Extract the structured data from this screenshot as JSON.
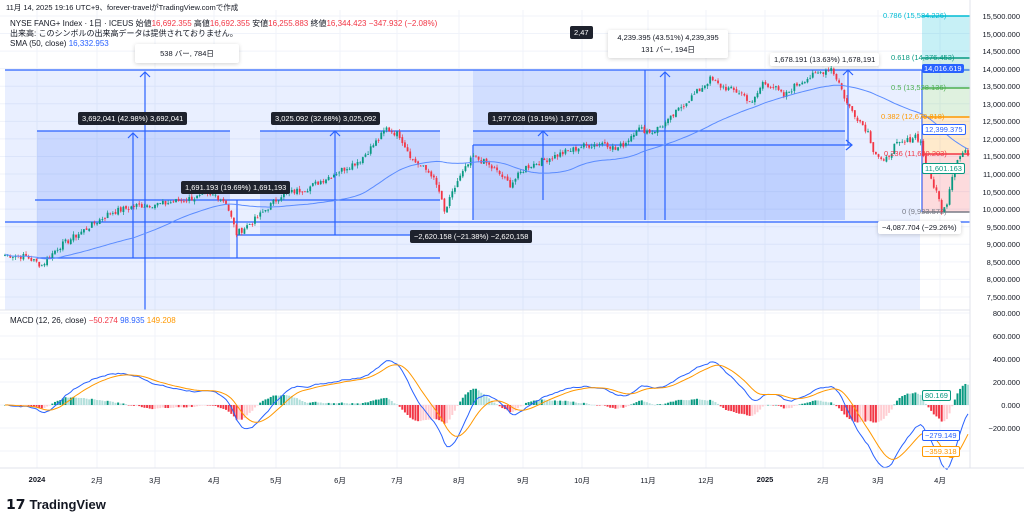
{
  "caption": "11月 14, 2025 19:16 UTC+9、forever-travelがTradingView.comで作成",
  "legend": {
    "symbol": "NYSE FANG+ Index · 1日 · ICEUS",
    "open_label": "始値",
    "open": "16,692.355",
    "high_label": "高値",
    "high": "16,692.355",
    "low_label": "安値",
    "low": "16,255.883",
    "close_label": "終値",
    "close": "16,344.423",
    "change": "−347.932 (−2.08%)",
    "volume_note": "出来高: このシンボルの出来高データは提供されておりません。",
    "sma_label": "SMA (50, close)",
    "sma_value": "16,332.953",
    "macd_label": "MACD (12, 26, close)",
    "macd_hist": "−50.274",
    "macd_line": "98.935",
    "macd_signal": "149.208"
  },
  "measurements": {
    "m1": "3,692,041 (42.98%) 3,692,041",
    "m2": "1,691.193 (19.69%) 1,691,193",
    "m3": "3,025.092 (32.68%) 3,025,092",
    "m4": "1,977.028 (19.19%) 1,977,028",
    "m5": "−2,620.158 (−21.38%) −2,620,158",
    "m6_line1": "4,239.395 (43.51%) 4,239,395",
    "m6_line2": "131 バー, 194日",
    "m7": "1,678.191 (13.63%) 1,678,191",
    "m8": "538 バー, 784日",
    "m9": "−4,087.704 (−29.26%)",
    "m10": "2,47"
  },
  "fib": [
    {
      "label": "0.786 (15,584.226)",
      "color": "#00bcd4"
    },
    {
      "label": "0.618 (14,376.453)",
      "color": "#089981"
    },
    {
      "label": "0.5 (13,528.136)",
      "color": "#4caf50"
    },
    {
      "label": "0.382 (12,679.818)",
      "color": "#ff9800"
    },
    {
      "label": "0.236 (11,630.203)",
      "color": "#f23645"
    },
    {
      "label": "0 (9,933.572)",
      "color": "#787b86"
    }
  ],
  "price_axis": [
    "15,500.000",
    "15,000.000",
    "14,500.000",
    "14,000.000",
    "13,500.000",
    "13,000.000",
    "12,500.000",
    "12,000.000",
    "11,500.000",
    "11,000.000",
    "10,500.000",
    "10,000.000",
    "9,500.000",
    "9,000.000",
    "8,500.000",
    "8,000.000",
    "7,500.000"
  ],
  "price_tags": {
    "last_high": "14,016.619",
    "sma": "12,399.375",
    "close": "11,601.163"
  },
  "macd_axis": [
    "800.000",
    "600.000",
    "400.000",
    "200.000",
    "0.000",
    "−200.000"
  ],
  "macd_tags": {
    "hist": "80.169",
    "macd": "−279.149",
    "signal": "−359.318"
  },
  "time_axis": [
    "2024",
    "2月",
    "3月",
    "4月",
    "5月",
    "6月",
    "7月",
    "8月",
    "9月",
    "10月",
    "11月",
    "12月",
    "2025",
    "2月",
    "3月",
    "4月"
  ],
  "brand": "TradingView",
  "colors": {
    "up": "#089981",
    "down": "#f23645",
    "sma": "#5b8cff",
    "macd": "#2962ff",
    "signal": "#ff9800"
  },
  "chart_data": {
    "type": "candlestick",
    "title": "NYSE FANG+ Index · 1日",
    "ylim": [
      7300,
      15700
    ],
    "keypoints": [
      [
        0,
        8700
      ],
      [
        8,
        8650
      ],
      [
        14,
        8400
      ],
      [
        20,
        8900
      ],
      [
        30,
        9400
      ],
      [
        40,
        9900
      ],
      [
        50,
        10100
      ],
      [
        60,
        10150
      ],
      [
        70,
        10300
      ],
      [
        80,
        10400
      ],
      [
        84,
        10200
      ],
      [
        88,
        9300
      ],
      [
        95,
        9700
      ],
      [
        105,
        10400
      ],
      [
        115,
        10600
      ],
      [
        125,
        11000
      ],
      [
        135,
        11400
      ],
      [
        142,
        12000
      ],
      [
        145,
        12300
      ],
      [
        150,
        12100
      ],
      [
        155,
        11400
      ],
      [
        162,
        11000
      ],
      [
        165,
        10500
      ],
      [
        167,
        9900
      ],
      [
        172,
        10800
      ],
      [
        178,
        11500
      ],
      [
        183,
        11300
      ],
      [
        188,
        11000
      ],
      [
        192,
        10700
      ],
      [
        198,
        11200
      ],
      [
        205,
        11400
      ],
      [
        212,
        11600
      ],
      [
        220,
        11800
      ],
      [
        228,
        11900
      ],
      [
        232,
        11700
      ],
      [
        236,
        11900
      ],
      [
        240,
        12300
      ],
      [
        246,
        12200
      ],
      [
        252,
        12500
      ],
      [
        258,
        13000
      ],
      [
        264,
        13400
      ],
      [
        268,
        13700
      ],
      [
        272,
        13500
      ],
      [
        276,
        13400
      ],
      [
        280,
        13300
      ],
      [
        284,
        13000
      ],
      [
        288,
        13600
      ],
      [
        292,
        13500
      ],
      [
        296,
        13200
      ],
      [
        300,
        13500
      ],
      [
        304,
        13700
      ],
      [
        310,
        13900
      ],
      [
        314,
        14016
      ],
      [
        317,
        13600
      ],
      [
        320,
        13000
      ],
      [
        324,
        12600
      ],
      [
        328,
        12200
      ],
      [
        330,
        11700
      ],
      [
        334,
        11300
      ],
      [
        338,
        11800
      ],
      [
        342,
        11900
      ],
      [
        346,
        12100
      ],
      [
        348,
        11900
      ],
      [
        350,
        11200
      ],
      [
        354,
        10500
      ],
      [
        356,
        10000
      ],
      [
        358,
        10200
      ],
      [
        360,
        11000
      ],
      [
        362,
        11400
      ],
      [
        364,
        11600
      ],
      [
        366,
        11600
      ]
    ],
    "indicators": [
      "SMA 50",
      "MACD 12 26 9"
    ]
  }
}
